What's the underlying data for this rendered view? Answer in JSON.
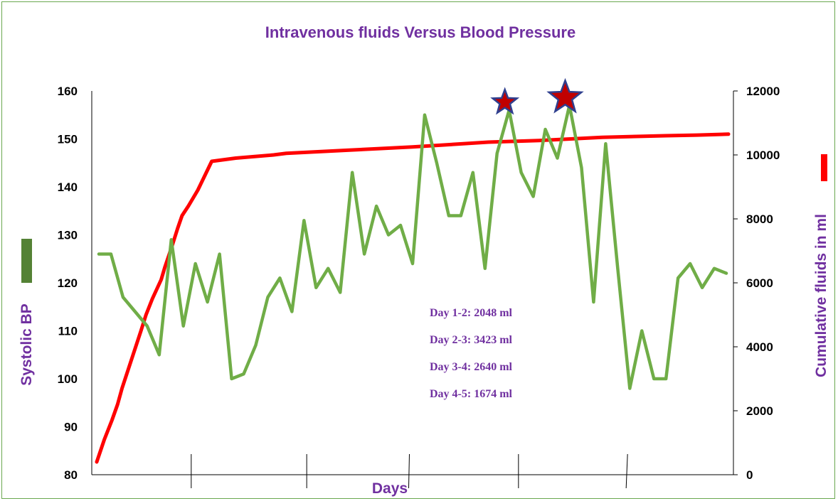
{
  "chart_data": {
    "type": "line",
    "title": "Intravenous fluids Versus Blood Pressure",
    "xlabel": "Days",
    "ylabel_left": "Systolic BP",
    "ylabel_right": "Cumulative fluids in ml",
    "y_left_range": [
      80,
      160
    ],
    "y_left_ticks": [
      "80",
      "90",
      "100",
      "110",
      "120",
      "130",
      "140",
      "150",
      "160"
    ],
    "y_right_range": [
      0,
      12000
    ],
    "y_right_ticks": [
      "0",
      "2000",
      "4000",
      "6000",
      "8000",
      "10000",
      "12000"
    ],
    "grid": false,
    "colors": {
      "bp": "#70ad47",
      "fluids": "#ff0000",
      "text": "#7030a0",
      "star_fill": "#c00000",
      "star_stroke": "#2f3f8f",
      "frame": "#6aa84f"
    },
    "series": [
      {
        "name": "Systolic BP",
        "axis": "left",
        "values": [
          126,
          126,
          117,
          114,
          111,
          105,
          129,
          111,
          124,
          116,
          126,
          100,
          101,
          107,
          117,
          121,
          114,
          133,
          119,
          123,
          118,
          143,
          126,
          136,
          130,
          132,
          124,
          155,
          145,
          134,
          134,
          143,
          123,
          147,
          156,
          143,
          138,
          152,
          146,
          157,
          144,
          116,
          149,
          123,
          98,
          110,
          100,
          100,
          121,
          124,
          119,
          123,
          122
        ]
      },
      {
        "name": "Cumulative fluids in ml",
        "axis": "right",
        "x": [
          0,
          12,
          24,
          33,
          40,
          50,
          60,
          70,
          78,
          88,
          102,
          108,
          120,
          128,
          135,
          145,
          160,
          182,
          220,
          250,
          280,
          300,
          350,
          400,
          450,
          500,
          580,
          620,
          700,
          750,
          800,
          860,
          900,
          950,
          1000
        ],
        "values": [
          400,
          1100,
          1700,
          2200,
          2700,
          3300,
          3900,
          4500,
          5000,
          5500,
          6100,
          6500,
          7200,
          7700,
          8100,
          8400,
          8900,
          9800,
          9900,
          9950,
          10000,
          10050,
          10100,
          10150,
          10200,
          10250,
          10350,
          10400,
          10450,
          10500,
          10550,
          10580,
          10600,
          10620,
          10650
        ]
      }
    ],
    "highlighted_peaks": [
      34,
      39
    ],
    "day_ticks": [
      0.155,
      0.335,
      0.495,
      0.665,
      0.835
    ],
    "annotations": [
      "Day 1-2: 2048 ml",
      "Day 2-3: 3423 ml",
      "Day 3-4: 2640 ml",
      "Day 4-5: 1674 ml"
    ]
  }
}
